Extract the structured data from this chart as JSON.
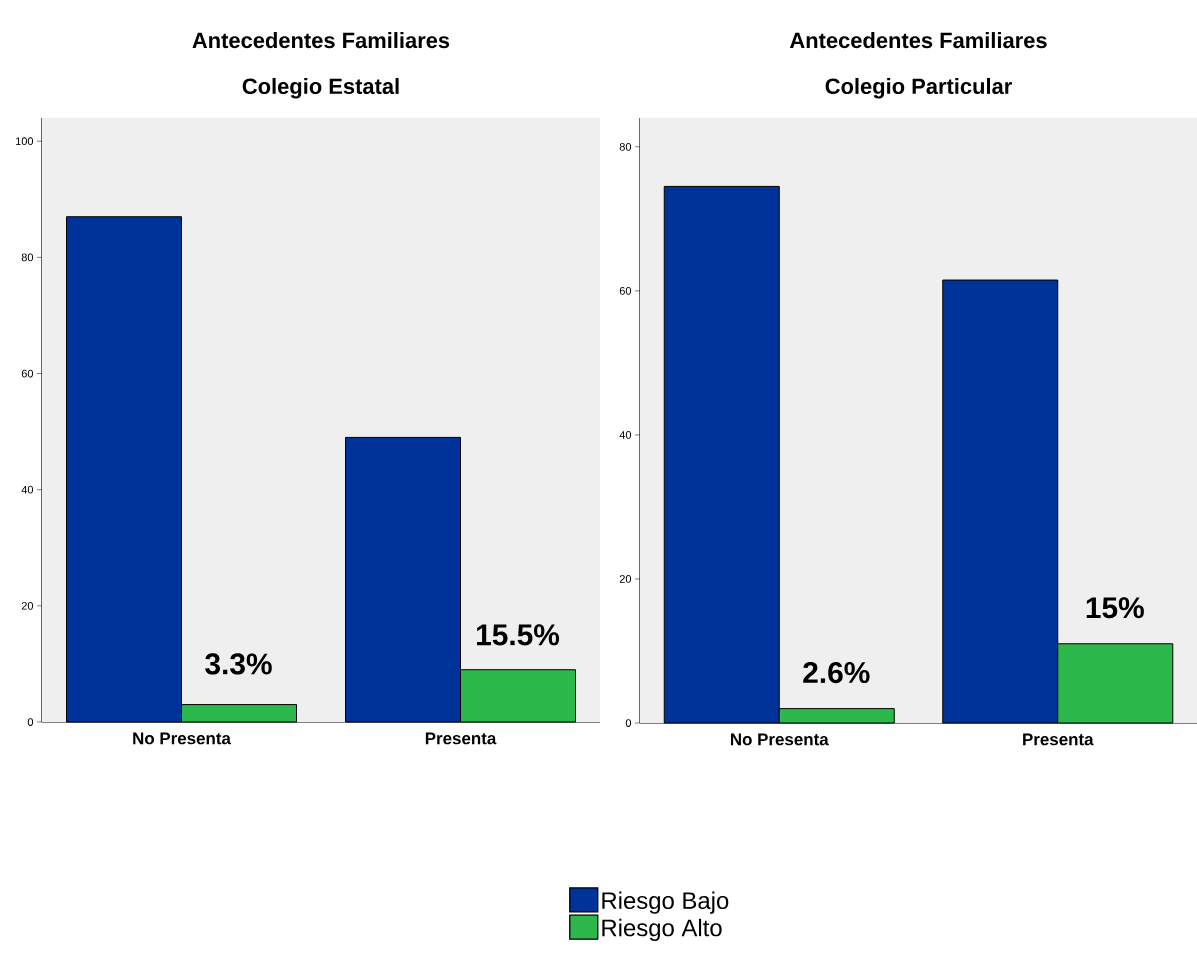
{
  "chart_data": [
    {
      "type": "bar",
      "title": "Antecedentes Familiares",
      "subtitle": "Colegio Estatal",
      "categories": [
        "No Presenta",
        "Presenta"
      ],
      "series": [
        {
          "name": "Riesgo Bajo",
          "color": "#003399",
          "values": [
            87,
            49
          ]
        },
        {
          "name": "Riesgo Alto",
          "color": "#2db84b",
          "values": [
            3,
            9
          ]
        }
      ],
      "ylim": [
        0,
        104
      ],
      "yticks": [
        0,
        20,
        40,
        60,
        80,
        100
      ],
      "legend": "bottom",
      "annotations": [
        {
          "text": "3.3%",
          "x": "No Presenta",
          "y": 10
        },
        {
          "text": "15.5%",
          "x": "Presenta",
          "y": 15
        }
      ]
    },
    {
      "type": "bar",
      "title": "Antecedentes Familiares",
      "subtitle": "Colegio Particular",
      "categories": [
        "No Presenta",
        "Presenta"
      ],
      "series": [
        {
          "color": "#003399",
          "values": [
            74.5,
            61.5
          ]
        },
        {
          "color": "#2db84b",
          "values": [
            2,
            11
          ]
        }
      ],
      "ylim": [
        0,
        84
      ],
      "yticks": [
        0,
        20,
        40,
        60,
        80
      ],
      "annotations": [
        {
          "text": "2.6%",
          "x": "No Presenta",
          "y": 7
        },
        {
          "text": "15%",
          "x": "Presenta",
          "y": 16
        }
      ]
    }
  ]
}
